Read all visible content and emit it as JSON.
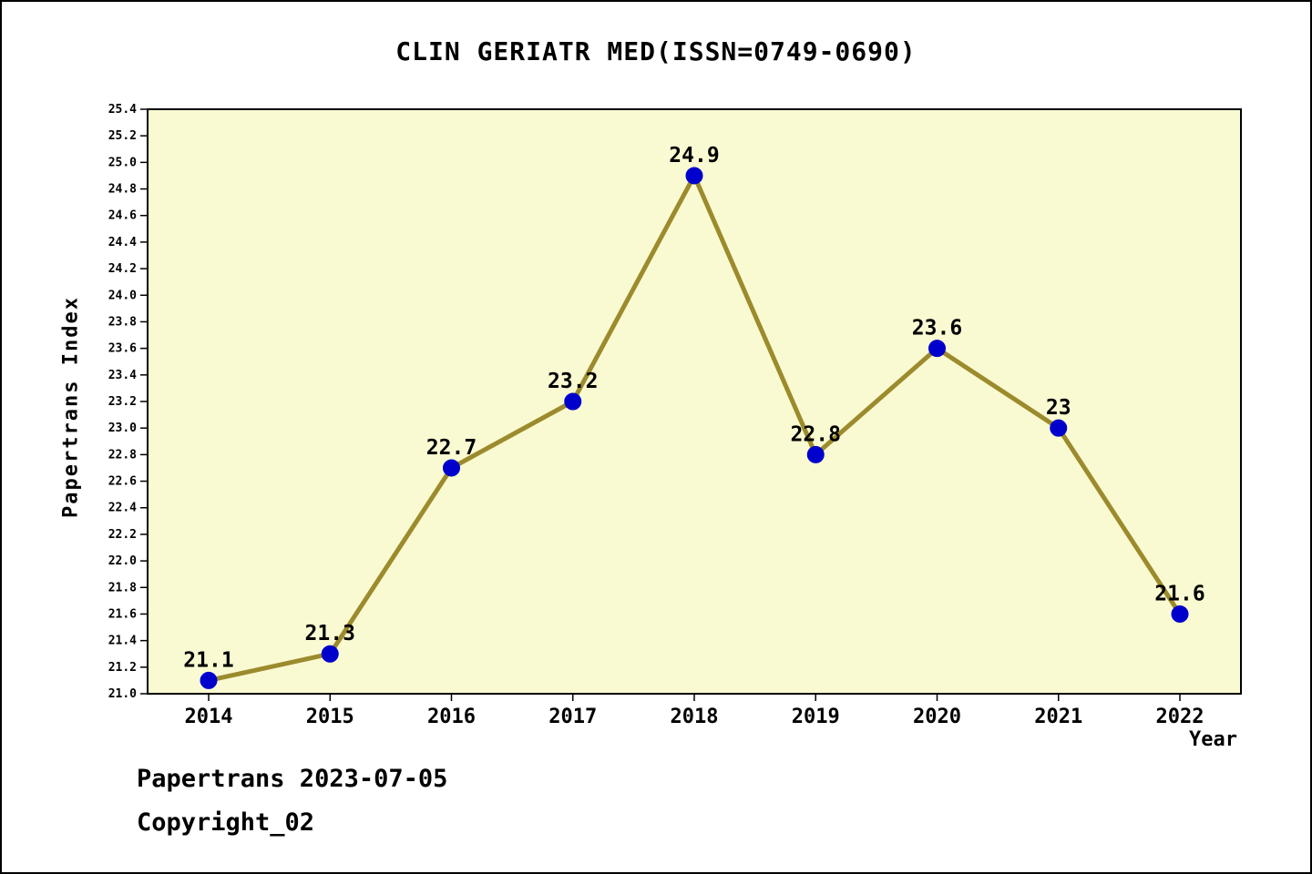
{
  "title": "CLIN GERIATR MED(ISSN=0749-0690)",
  "footer": {
    "line1": "Papertrans 2023-07-05",
    "line2": "Copyright_02"
  },
  "chart_data": {
    "type": "line",
    "title": "CLIN GERIATR MED(ISSN=0749-0690)",
    "xlabel": "Year",
    "ylabel": "Papertrans Index",
    "categories": [
      "2014",
      "2015",
      "2016",
      "2017",
      "2018",
      "2019",
      "2020",
      "2021",
      "2022"
    ],
    "values": [
      21.1,
      21.3,
      22.7,
      23.2,
      24.9,
      22.8,
      23.6,
      23.0,
      21.6
    ],
    "point_labels": [
      "21.1",
      "21.3",
      "22.7",
      "23.2",
      "24.9",
      "22.8",
      "23.6",
      "23",
      "21.6"
    ],
    "ylim": [
      21.0,
      25.4
    ],
    "ytick_step": 0.2,
    "grid": false,
    "legend": "none",
    "colors": {
      "line": "#9c8b2d",
      "marker": "#0000cd",
      "plot_bg": "#fafad2",
      "axis": "#000000",
      "text": "#000000"
    }
  }
}
